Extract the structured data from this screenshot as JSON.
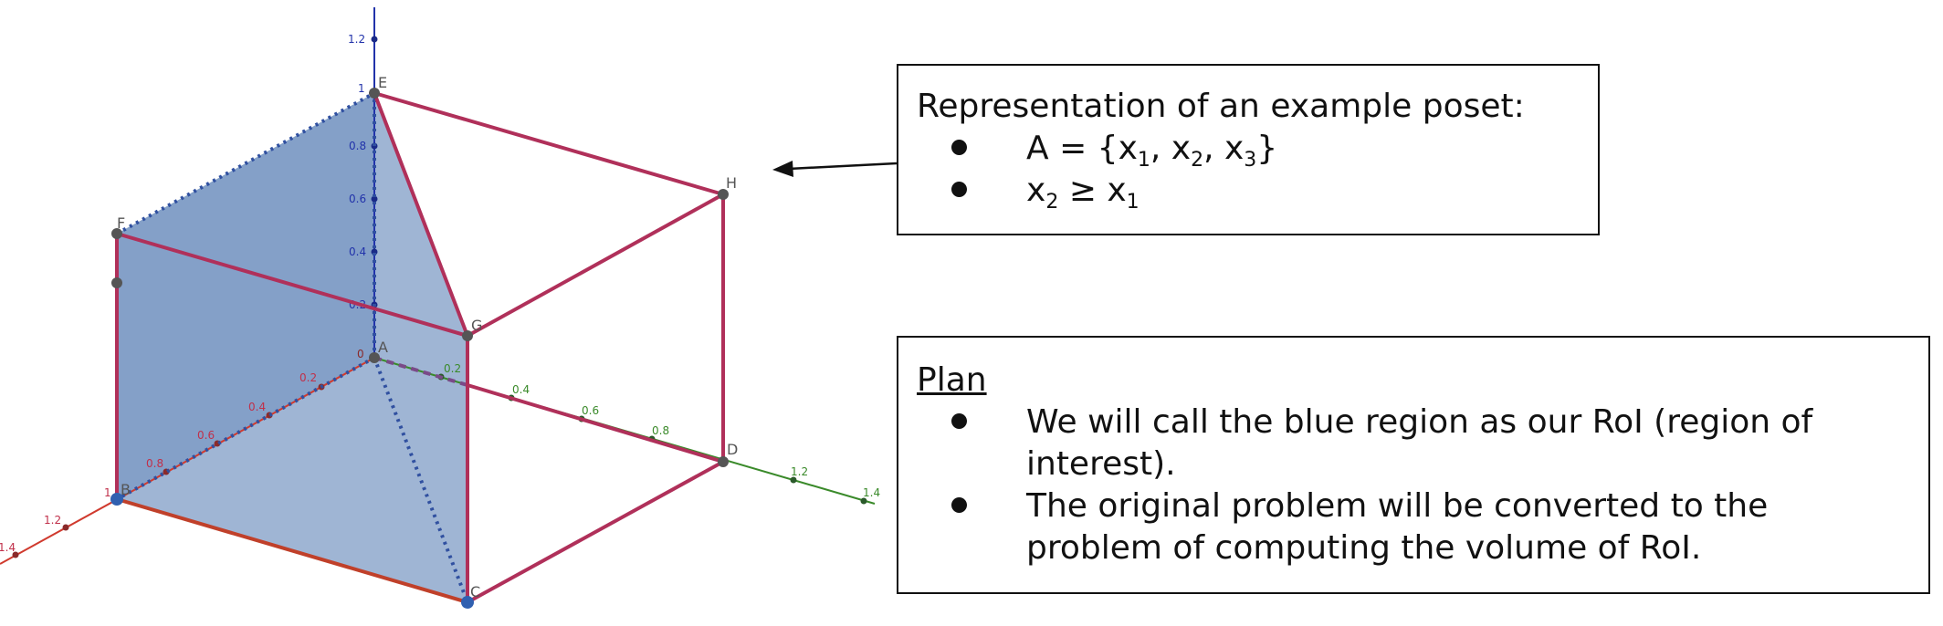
{
  "diagram": {
    "vertices": [
      "A",
      "B",
      "C",
      "D",
      "E",
      "F",
      "G",
      "H"
    ],
    "axes": {
      "x": {
        "color": "#d03a2e",
        "ticks": [
          "0.2",
          "0.4",
          "0.6",
          "0.8",
          "1",
          "1.2",
          "1.4"
        ]
      },
      "y": {
        "color": "#3a8a2a",
        "ticks": [
          "0.2",
          "0.4",
          "0.6",
          "0.8",
          "1.2",
          "1.4"
        ]
      },
      "z": {
        "color": "#2233aa",
        "ticks": [
          "0.2",
          "0.4",
          "0.6",
          "0.8",
          "1",
          "1.2"
        ]
      }
    },
    "origin_label": "0",
    "colors": {
      "edge": "#b0305a",
      "region_fill": "#7f9cc6",
      "region_dash": "#3050a0",
      "point": "#555555"
    }
  },
  "poset_box": {
    "title": "Representation of an example poset:",
    "bullet_1": {
      "text": "A = {x",
      "s1": "1",
      "t2": ", x",
      "s2": "2",
      "t3": ", x",
      "s3": "3",
      "t4": "}"
    },
    "bullet_2": {
      "text": "x",
      "s1": "2",
      "t2": " ≥ x",
      "s2": "1"
    }
  },
  "plan_box": {
    "title": "Plan",
    "bullets": [
      [
        "We will call the blue region as our RoI (region of",
        "interest)."
      ],
      [
        "The original problem will be converted to the",
        "problem of computing the volume of RoI."
      ]
    ]
  }
}
